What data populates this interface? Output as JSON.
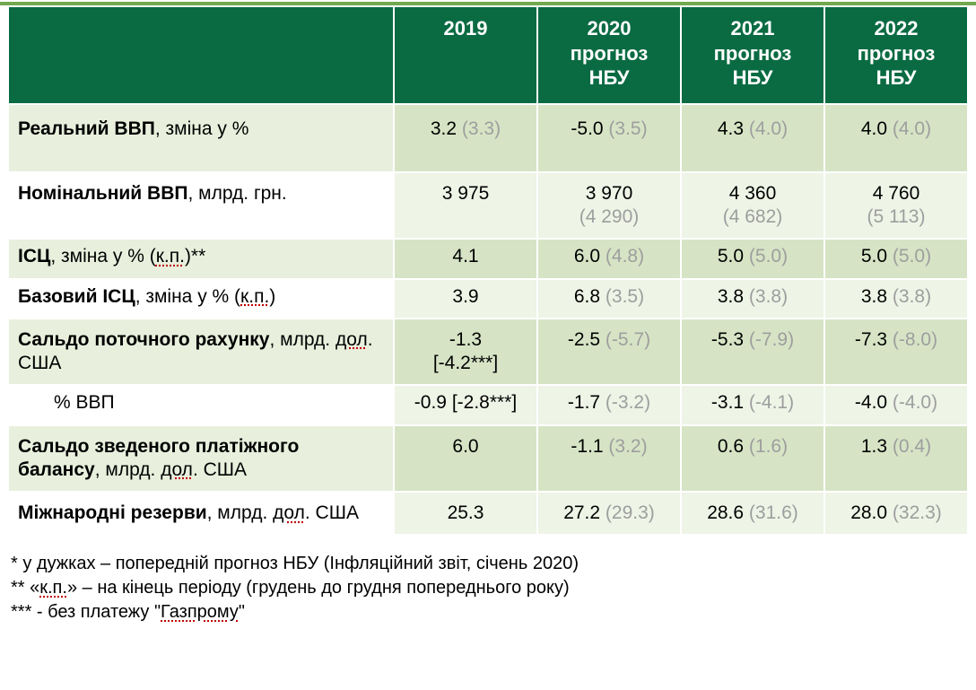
{
  "colors": {
    "header_bg": "#0a6b42",
    "header_fg": "#ffffff",
    "stripe": "#72a84f",
    "zebra_even_label": "#e8f0dd",
    "zebra_even_val": "#d6e4c5",
    "zebra_odd_label": "#ffffff",
    "zebra_odd_val": "#eef4e6",
    "muted": "#9e9e9e",
    "underline": "#c00000",
    "text": "#000000"
  },
  "typography": {
    "header_fontsize_pt": 17,
    "body_fontsize_pt": 16,
    "footnote_fontsize_pt": 15,
    "font_family": "Arial"
  },
  "headers": {
    "c0": "",
    "c1": "2019",
    "c2_line1": "2020",
    "c2_line2": "прогноз",
    "c2_line3": "НБУ",
    "c3_line1": "2021",
    "c3_line2": "прогноз",
    "c3_line3": "НБУ",
    "c4_line1": "2022",
    "c4_line2": "прогноз",
    "c4_line3": "НБУ"
  },
  "rows": {
    "r0": {
      "label_bold": "Реальний ВВП",
      "label_rest": ", зміна у %",
      "v2019": "3.2",
      "p2019": "(3.3)",
      "v2020": "-5.0",
      "p2020": "(3.5)",
      "v2021": "4.3",
      "p2021": "(4.0)",
      "v2022": "4.0",
      "p2022": "(4.0)"
    },
    "r1": {
      "label_bold": "Номінальний ВВП",
      "label_rest": ", млрд. грн.",
      "v2019": "3 975",
      "p2019": "",
      "v2020": "3 970",
      "p2020": "(4 290)",
      "v2021": "4 360",
      "p2021": "(4 682)",
      "v2022": "4 760",
      "p2022": "(5 113)"
    },
    "r2": {
      "label_bold": "ІСЦ",
      "label_pre": ", зміна у % (",
      "label_kp": "к.п.",
      "label_post": ")**",
      "v2019": "4.1",
      "p2019": "",
      "v2020": "6.0",
      "p2020": "(4.8)",
      "v2021": "5.0",
      "p2021": "(5.0)",
      "v2022": "5.0",
      "p2022": "(5.0)"
    },
    "r3": {
      "label_bold": "Базовий ІСЦ",
      "label_pre": ", зміна у % (",
      "label_kp": "к.п.",
      "label_post": ")",
      "v2019": "3.9",
      "p2019": "",
      "v2020": "6.8",
      "p2020": "(3.5)",
      "v2021": "3.8",
      "p2021": "(3.8)",
      "v2022": "3.8",
      "p2022": "(3.8)"
    },
    "r4": {
      "label_bold": "Сальдо поточного рахунку",
      "label_pre": ", млрд. ",
      "label_dol": "дол",
      "label_post": ". США",
      "v2019_l1": "-1.3",
      "v2019_l2": "[-4.2***]",
      "v2020": "-2.5",
      "p2020": "(-5.7)",
      "v2021": "-5.3",
      "p2021": "(-7.9)",
      "v2022": "-7.3",
      "p2022": "(-8.0)"
    },
    "r5": {
      "label": "% ВВП",
      "v2019": "-0.9 [-2.8***]",
      "v2020": "-1.7",
      "p2020": "(-3.2)",
      "v2021": "-3.1",
      "p2021": "(-4.1)",
      "v2022": "-4.0",
      "p2022": "(-4.0)"
    },
    "r6": {
      "label_bold": "Сальдо зведеного платіжного балансу",
      "label_pre": ", млрд. ",
      "label_dol": "дол",
      "label_post": ". США",
      "v2019": "6.0",
      "p2019": "",
      "v2020": "-1.1",
      "p2020": "(3.2)",
      "v2021": "0.6",
      "p2021": "(1.6)",
      "v2022": "1.3",
      "p2022": "(0.4)"
    },
    "r7": {
      "label_bold": "Міжнародні резерви",
      "label_pre": ", млрд. ",
      "label_dol": "дол",
      "label_post": ". США",
      "v2019": "25.3",
      "p2019": "",
      "v2020": "27.2",
      "p2020": "(29.3)",
      "v2021": "28.6",
      "p2021": "(31.6)",
      "v2022": "28.0",
      "p2022": "(32.3)"
    }
  },
  "footnotes": {
    "f1": "* у дужках – попередній прогноз НБУ (Інфляційний звіт, січень 2020)",
    "f2_pre": "** «",
    "f2_kp": "к.п.",
    "f2_post": "» – на кінець періоду (грудень до грудня попереднього року)",
    "f3_pre": "*** - без платежу \"",
    "f3_gaz": "Газпрому",
    "f3_post": "\""
  }
}
